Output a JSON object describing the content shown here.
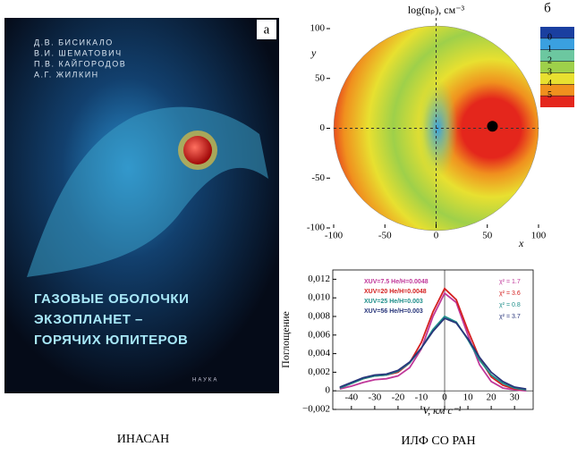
{
  "book_cover": {
    "panel_label": "а",
    "authors": [
      "Д.В. БИСИКАЛО",
      "В.И. ШЕМАТОВИЧ",
      "П.В. КАЙГОРОДОВ",
      "А.Г. ЖИЛКИН"
    ],
    "title_lines": [
      "ГАЗОВЫЕ ОБОЛОЧКИ",
      "ЭКЗОПЛАНЕТ –",
      "ГОРЯЧИХ ЮПИТЕРОВ"
    ],
    "publisher": "НАУКА"
  },
  "captions": [
    "ИНАСАН",
    "ИЛФ СО РАН"
  ],
  "chart_data": [
    {
      "type": "map",
      "panel_label": "б",
      "title": "log(nₚ), см⁻³",
      "xlabel": "x",
      "ylabel": "y",
      "xlim": [
        -100,
        100
      ],
      "ylim": [
        -100,
        100
      ],
      "xticks": [
        -100,
        -50,
        0,
        50,
        100
      ],
      "yticks": [
        -100,
        -50,
        0,
        50,
        100
      ],
      "planet": {
        "x": 55,
        "y": 2
      },
      "colorscale": [
        "#1a3fa0",
        "#3aa0e0",
        "#6cc7a0",
        "#9ed04a",
        "#e8e030",
        "#f0901e",
        "#e4261c"
      ],
      "colorbar_ticks": [
        0,
        1,
        2,
        3,
        4,
        5
      ]
    },
    {
      "type": "line",
      "xlabel": "V, км с⁻¹",
      "ylabel": "Поглощение",
      "xlim": [
        -48,
        38
      ],
      "ylim": [
        -0.002,
        0.013
      ],
      "xticks": [
        -40,
        -30,
        -20,
        -10,
        0,
        10,
        20,
        30
      ],
      "yticks": [
        {
          "value": -0.002,
          "label": "−0,002"
        },
        {
          "value": 0,
          "label": "0"
        },
        {
          "value": 0.002,
          "label": "0,002"
        },
        {
          "value": 0.004,
          "label": "0,004"
        },
        {
          "value": 0.006,
          "label": "0,006"
        },
        {
          "value": 0.008,
          "label": "0,008"
        },
        {
          "value": 0.01,
          "label": "0,010"
        },
        {
          "value": 0.012,
          "label": "0,012"
        }
      ],
      "x": [
        -45,
        -40,
        -35,
        -30,
        -25,
        -20,
        -15,
        -10,
        -5,
        0,
        5,
        10,
        15,
        20,
        25,
        30,
        35
      ],
      "series": [
        {
          "name": "XUV=7.5 He/H=0.0048",
          "color": "#c0389a",
          "annotation": "χ² = 1.7",
          "values": [
            0.0002,
            0.0005,
            0.0009,
            0.0012,
            0.0013,
            0.0016,
            0.0025,
            0.0045,
            0.008,
            0.0105,
            0.0095,
            0.006,
            0.0028,
            0.001,
            0.0003,
            0.0001,
            0
          ]
        },
        {
          "name": "XUV=20 He/H=0.0048",
          "color": "#d42020",
          "annotation": "χ² = 3.6",
          "values": [
            0.0003,
            0.0008,
            0.0013,
            0.0016,
            0.0017,
            0.002,
            0.003,
            0.0052,
            0.0085,
            0.011,
            0.0098,
            0.0065,
            0.0035,
            0.0015,
            0.0006,
            0.0002,
            0.0001
          ]
        },
        {
          "name": "XUV=25 He/H=0.003",
          "color": "#1f8f8a",
          "annotation": "χ² = 0.8",
          "values": [
            0.0003,
            0.0008,
            0.0013,
            0.0016,
            0.0017,
            0.0021,
            0.003,
            0.0046,
            0.0066,
            0.008,
            0.0074,
            0.0055,
            0.0033,
            0.0017,
            0.0008,
            0.0003,
            0.0001
          ]
        },
        {
          "name": "XUV=56 He/H=0.003",
          "color": "#28357a",
          "annotation": "χ² = 3.7",
          "values": [
            0.0004,
            0.0009,
            0.0014,
            0.0017,
            0.0018,
            0.0022,
            0.0031,
            0.0046,
            0.0064,
            0.0078,
            0.0073,
            0.0056,
            0.0036,
            0.002,
            0.001,
            0.0004,
            0.0002
          ]
        }
      ]
    }
  ]
}
